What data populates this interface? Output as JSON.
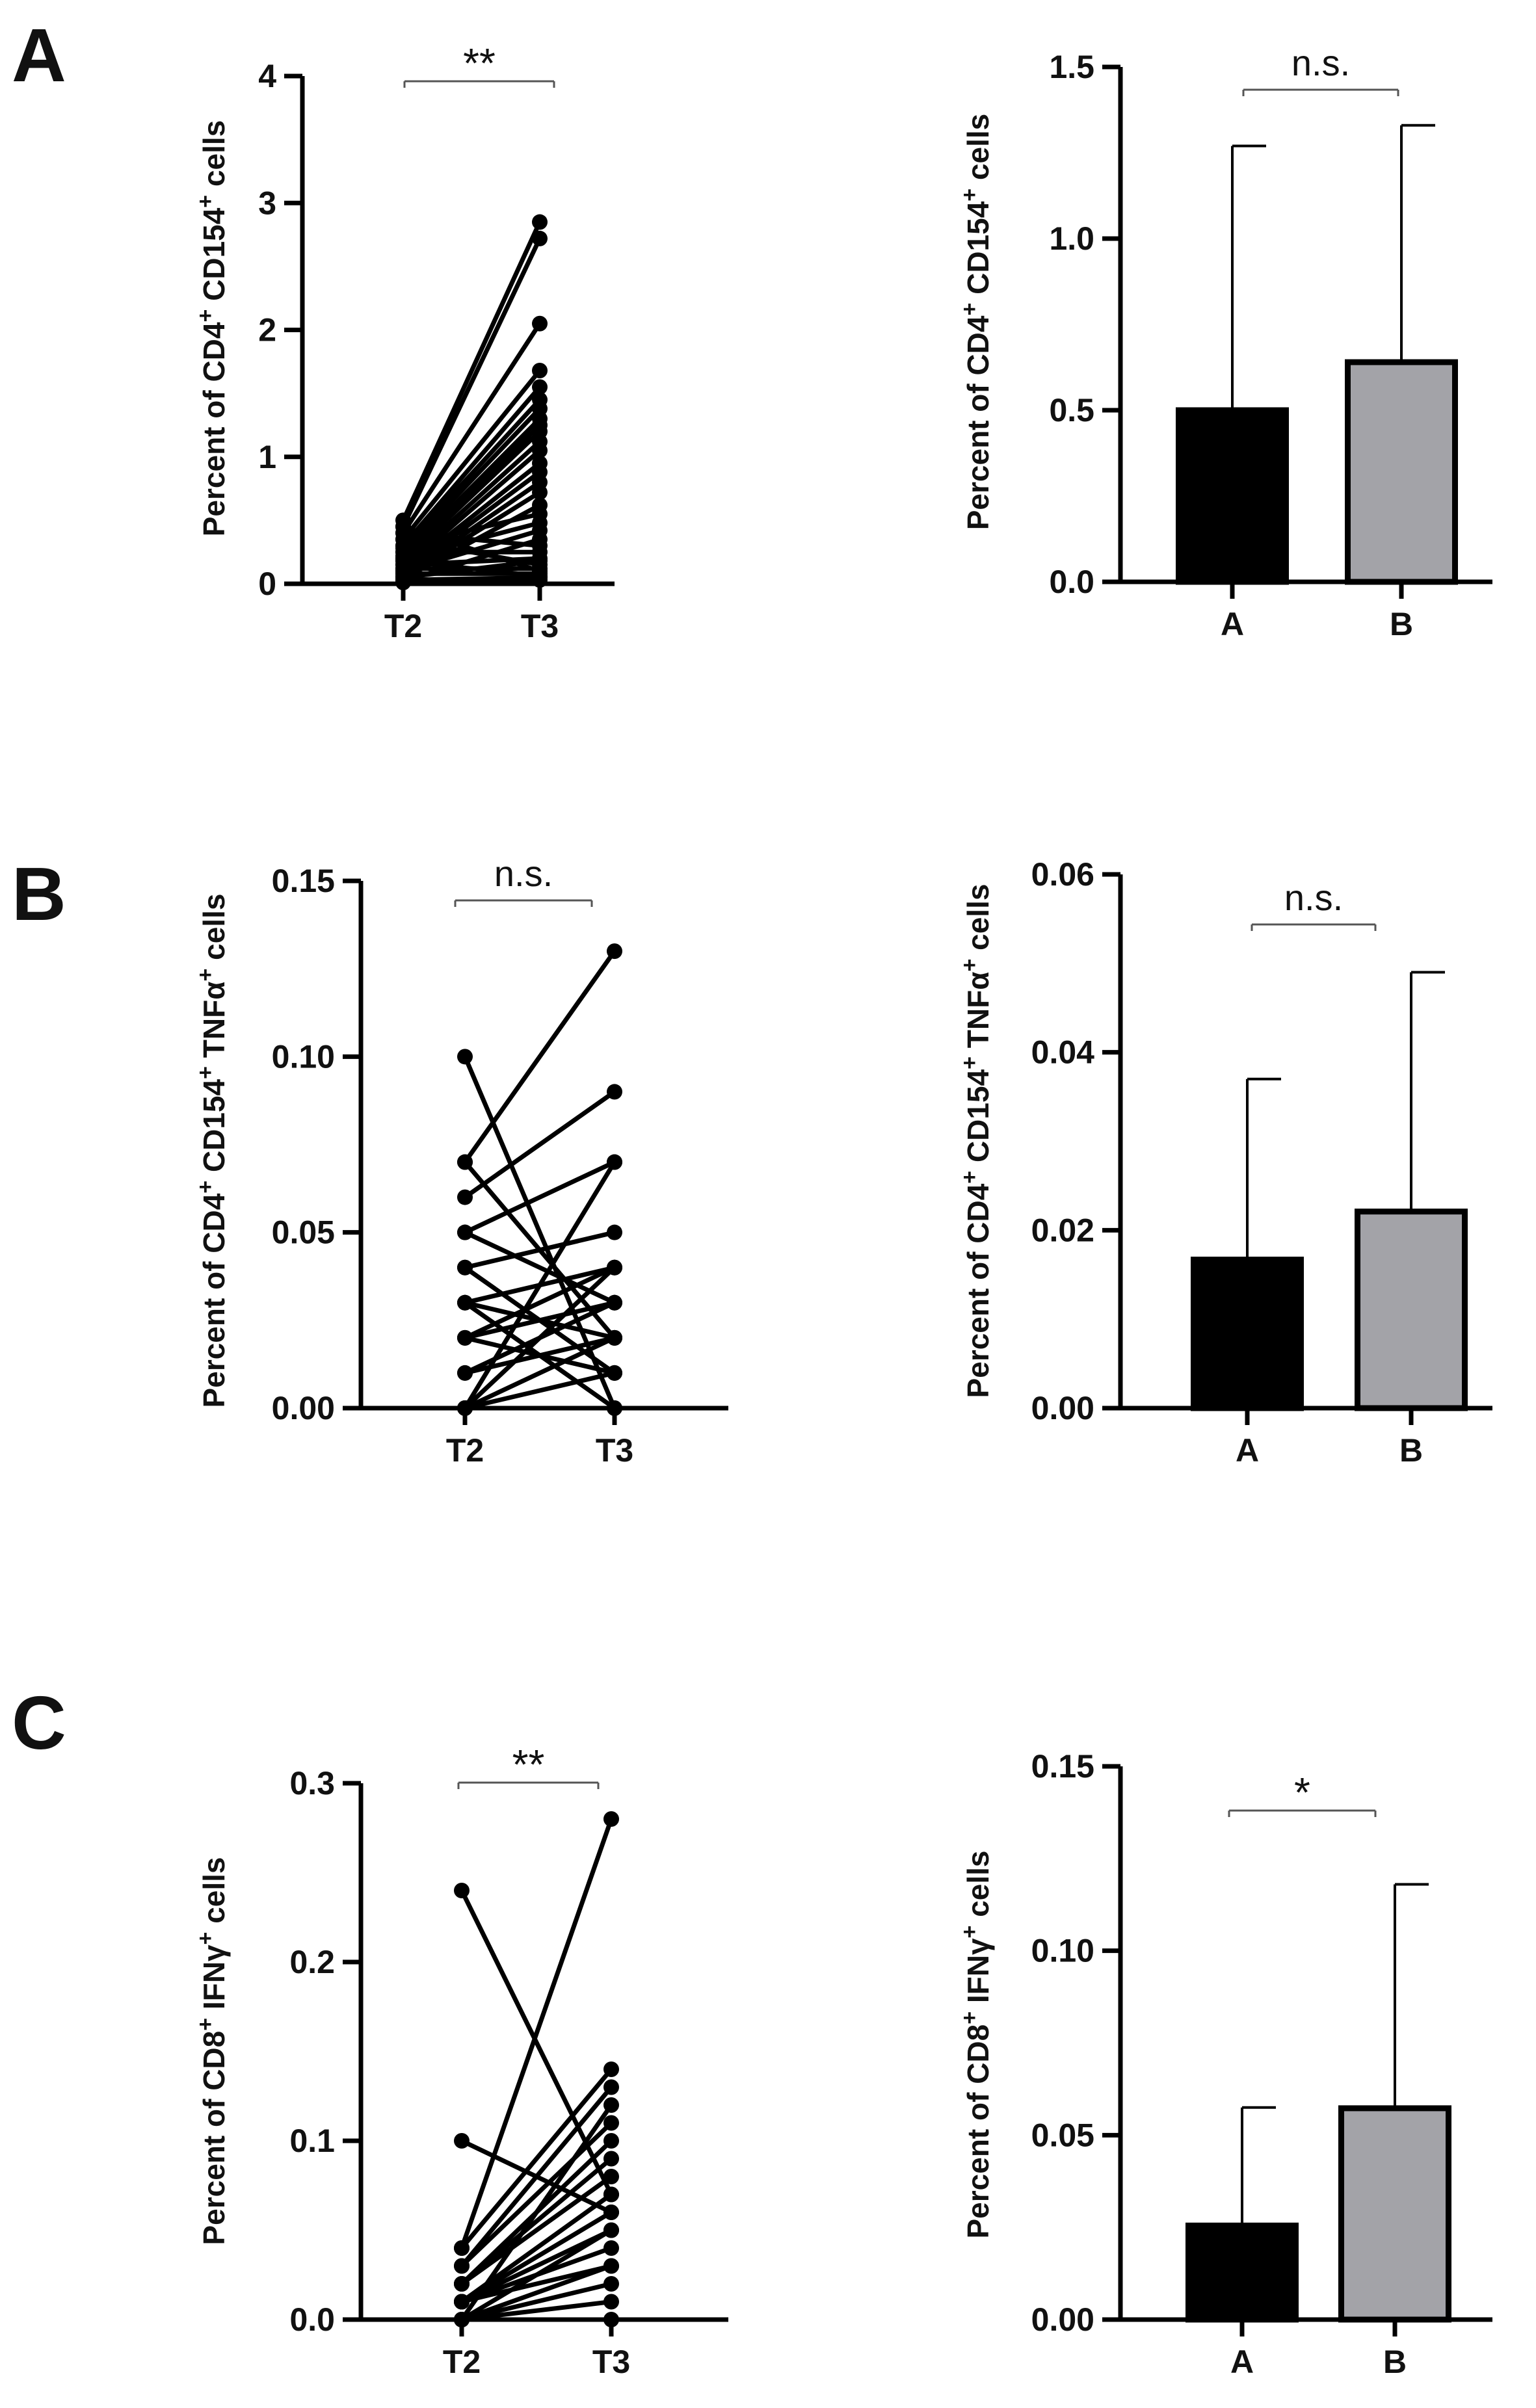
{
  "panel_letters": [
    "A",
    "B",
    "C"
  ],
  "colors": {
    "group_a": "#000000",
    "group_b": "#a3a3a8",
    "axis": "#000000",
    "bracket": "#555555"
  },
  "chart_data": [
    {
      "id": "A-left",
      "type": "line",
      "subtype": "paired-lines",
      "title": "",
      "ylabel_parts": [
        "Percent of CD4",
        "+",
        " CD154",
        "+",
        " cells"
      ],
      "categories": [
        "T2",
        "T3"
      ],
      "ylim": [
        0,
        4
      ],
      "yticks": [
        0,
        1,
        2,
        3,
        4
      ],
      "ytick_labels": [
        "0",
        "1",
        "2",
        "3",
        "4"
      ],
      "significance": "**",
      "pairs": [
        [
          0.5,
          2.85
        ],
        [
          0.45,
          2.72
        ],
        [
          0.4,
          2.05
        ],
        [
          0.35,
          1.68
        ],
        [
          0.3,
          1.55
        ],
        [
          0.28,
          1.45
        ],
        [
          0.25,
          1.38
        ],
        [
          0.22,
          1.3
        ],
        [
          0.2,
          1.25
        ],
        [
          0.18,
          1.2
        ],
        [
          0.15,
          1.12
        ],
        [
          0.12,
          1.05
        ],
        [
          0.1,
          0.95
        ],
        [
          0.08,
          0.88
        ],
        [
          0.06,
          0.8
        ],
        [
          0.05,
          0.72
        ],
        [
          0.04,
          0.62
        ],
        [
          0.3,
          0.55
        ],
        [
          0.2,
          0.48
        ],
        [
          0.1,
          0.42
        ],
        [
          0.02,
          0.35
        ],
        [
          0.4,
          0.3
        ],
        [
          0.25,
          0.25
        ],
        [
          0.15,
          0.2
        ],
        [
          0.05,
          0.18
        ],
        [
          0.35,
          0.15
        ],
        [
          0.12,
          0.12
        ],
        [
          0.45,
          0.1
        ],
        [
          0.08,
          0.08
        ],
        [
          0.18,
          0.06
        ],
        [
          0.03,
          0.05
        ],
        [
          0.01,
          0.03
        ]
      ]
    },
    {
      "id": "A-right",
      "type": "bar",
      "title": "",
      "ylabel_parts": [
        "Percent of CD4",
        "+",
        " CD154",
        "+",
        " cells"
      ],
      "categories": [
        "A",
        "B"
      ],
      "values": [
        0.5,
        0.64
      ],
      "errors": [
        0.77,
        0.69
      ],
      "ylim": [
        0,
        1.5
      ],
      "yticks": [
        0,
        0.5,
        1.0,
        1.5
      ],
      "ytick_labels": [
        "0.0",
        "0.5",
        "1.0",
        "1.5"
      ],
      "significance": "n.s."
    },
    {
      "id": "B-left",
      "type": "line",
      "subtype": "paired-lines",
      "title": "",
      "ylabel_parts": [
        "Percent of CD4",
        "+",
        " CD154",
        "+",
        " TNFα",
        "+",
        " cells"
      ],
      "categories": [
        "T2",
        "T3"
      ],
      "ylim": [
        0,
        0.15
      ],
      "yticks": [
        0,
        0.05,
        0.1,
        0.15
      ],
      "ytick_labels": [
        "0.00",
        "0.05",
        "0.10",
        "0.15"
      ],
      "significance": "n.s.",
      "pairs": [
        [
          0.1,
          0.0
        ],
        [
          0.07,
          0.13
        ],
        [
          0.07,
          0.02
        ],
        [
          0.06,
          0.09
        ],
        [
          0.05,
          0.03
        ],
        [
          0.05,
          0.07
        ],
        [
          0.04,
          0.01
        ],
        [
          0.04,
          0.05
        ],
        [
          0.03,
          0.04
        ],
        [
          0.03,
          0.0
        ],
        [
          0.03,
          0.02
        ],
        [
          0.02,
          0.03
        ],
        [
          0.02,
          0.04
        ],
        [
          0.02,
          0.01
        ],
        [
          0.01,
          0.02
        ],
        [
          0.01,
          0.03
        ],
        [
          0.0,
          0.02
        ],
        [
          0.0,
          0.04
        ],
        [
          0.0,
          0.01
        ],
        [
          0.0,
          0.07
        ]
      ]
    },
    {
      "id": "B-right",
      "type": "bar",
      "title": "",
      "ylabel_parts": [
        "Percent of CD4",
        "+",
        " CD154",
        "+",
        " TNFα",
        "+",
        " cells"
      ],
      "categories": [
        "A",
        "B"
      ],
      "values": [
        0.0167,
        0.0221
      ],
      "errors": [
        0.0203,
        0.0269
      ],
      "ylim": [
        0,
        0.06
      ],
      "yticks": [
        0,
        0.02,
        0.04,
        0.06
      ],
      "ytick_labels": [
        "0.00",
        "0.02",
        "0.04",
        "0.06"
      ],
      "significance": "n.s."
    },
    {
      "id": "C-left",
      "type": "line",
      "subtype": "paired-lines",
      "title": "",
      "ylabel_parts": [
        "Percent of CD8",
        "+",
        " IFNγ",
        "+",
        " cells"
      ],
      "categories": [
        "T2",
        "T3"
      ],
      "ylim": [
        0,
        0.3
      ],
      "yticks": [
        0,
        0.1,
        0.2,
        0.3
      ],
      "ytick_labels": [
        "0.0",
        "0.1",
        "0.2",
        "0.3"
      ],
      "significance": "**",
      "pairs": [
        [
          0.24,
          0.07
        ],
        [
          0.1,
          0.06
        ],
        [
          0.04,
          0.28
        ],
        [
          0.04,
          0.14
        ],
        [
          0.03,
          0.13
        ],
        [
          0.03,
          0.11
        ],
        [
          0.02,
          0.1
        ],
        [
          0.02,
          0.09
        ],
        [
          0.02,
          0.08
        ],
        [
          0.01,
          0.07
        ],
        [
          0.01,
          0.06
        ],
        [
          0.01,
          0.05
        ],
        [
          0.01,
          0.04
        ],
        [
          0.0,
          0.03
        ],
        [
          0.0,
          0.02
        ],
        [
          0.0,
          0.01
        ],
        [
          0.0,
          0.0
        ],
        [
          0.0,
          0.05
        ],
        [
          0.01,
          0.03
        ],
        [
          0.0,
          0.12
        ]
      ]
    },
    {
      "id": "C-right",
      "type": "bar",
      "title": "",
      "ylabel_parts": [
        "Percent of CD8",
        "+",
        " IFNγ",
        "+",
        " cells"
      ],
      "categories": [
        "A",
        "B"
      ],
      "values": [
        0.0255,
        0.0573
      ],
      "errors": [
        0.032,
        0.0607
      ],
      "ylim": [
        0,
        0.15
      ],
      "yticks": [
        0,
        0.05,
        0.1,
        0.15
      ],
      "ytick_labels": [
        "0.00",
        "0.05",
        "0.10",
        "0.15"
      ],
      "significance": "*"
    }
  ]
}
